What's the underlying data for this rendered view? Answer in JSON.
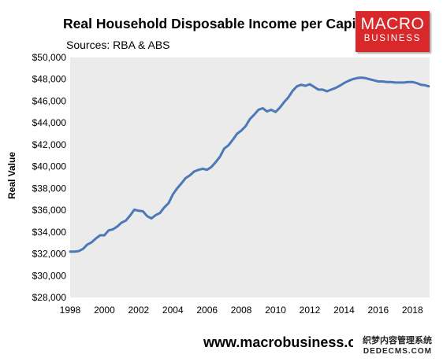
{
  "header": {
    "title": "Real Household Disposable Income per Capita",
    "subtitle": "Sources: RBA & ABS"
  },
  "logo": {
    "line1": "MACRO",
    "line2": "BUSINESS",
    "color": "#d8282a"
  },
  "footer": {
    "url_text": "www.macrobusiness.c"
  },
  "watermark": {
    "line1": "织梦内容管理系统",
    "line2": "DEDECMS.COM"
  },
  "colors": {
    "plot_bg": "#ebebeb",
    "line": "#4a78b8"
  },
  "chart_data": {
    "type": "line",
    "title": "Real Household Disposable Income per Capita",
    "subtitle": "Sources: RBA & ABS",
    "xlabel": "",
    "ylabel": "Real Value",
    "xlim": [
      1998,
      2019
    ],
    "ylim": [
      28000,
      50000
    ],
    "x_ticks": [
      1998,
      2000,
      2002,
      2004,
      2006,
      2008,
      2010,
      2012,
      2014,
      2016,
      2018
    ],
    "y_ticks": [
      28000,
      30000,
      32000,
      34000,
      36000,
      38000,
      40000,
      42000,
      44000,
      46000,
      48000,
      50000
    ],
    "y_tick_labels": [
      "$28,000",
      "$30,000",
      "$32,000",
      "$34,000",
      "$36,000",
      "$38,000",
      "$40,000",
      "$42,000",
      "$44,000",
      "$46,000",
      "$48,000",
      "$50,000"
    ],
    "grid": false,
    "legend": "none",
    "series": [
      {
        "x": [
          1998.0,
          1998.25,
          1998.5,
          1998.75,
          1999.0,
          1999.25,
          1999.5,
          1999.75,
          2000.0,
          2000.25,
          2000.5,
          2000.75,
          2001.0,
          2001.25,
          2001.5,
          2001.75,
          2002.0,
          2002.25,
          2002.5,
          2002.75,
          2003.0,
          2003.25,
          2003.5,
          2003.75,
          2004.0,
          2004.25,
          2004.5,
          2004.75,
          2005.0,
          2005.25,
          2005.5,
          2005.75,
          2006.0,
          2006.25,
          2006.5,
          2006.75,
          2007.0,
          2007.25,
          2007.5,
          2007.75,
          2008.0,
          2008.25,
          2008.5,
          2008.75,
          2009.0,
          2009.25,
          2009.5,
          2009.75,
          2010.0,
          2010.25,
          2010.5,
          2010.75,
          2011.0,
          2011.25,
          2011.5,
          2011.75,
          2012.0,
          2012.25,
          2012.5,
          2012.75,
          2013.0,
          2013.25,
          2013.5,
          2013.75,
          2014.0,
          2014.25,
          2014.5,
          2014.75,
          2015.0,
          2015.25,
          2015.5,
          2015.75,
          2016.0,
          2016.25,
          2016.5,
          2016.75,
          2017.0,
          2017.25,
          2017.5,
          2017.75,
          2018.0,
          2018.25,
          2018.5,
          2018.75,
          2018.95
        ],
        "values": [
          32200,
          32200,
          32250,
          32450,
          32850,
          33050,
          33400,
          33700,
          33700,
          34150,
          34250,
          34500,
          34850,
          35050,
          35500,
          36050,
          35950,
          35900,
          35450,
          35250,
          35550,
          35750,
          36250,
          36650,
          37450,
          38000,
          38450,
          38950,
          39200,
          39550,
          39700,
          39800,
          39700,
          39950,
          40400,
          40900,
          41650,
          41950,
          42450,
          43000,
          43300,
          43700,
          44350,
          44750,
          45200,
          45350,
          45050,
          45200,
          45000,
          45400,
          45900,
          46350,
          46950,
          47350,
          47500,
          47400,
          47550,
          47300,
          47050,
          47050,
          46900,
          47050,
          47200,
          47400,
          47650,
          47850,
          48000,
          48100,
          48150,
          48100,
          48000,
          47900,
          47800,
          47800,
          47750,
          47750,
          47700,
          47700,
          47700,
          47750,
          47750,
          47650,
          47500,
          47450,
          47350
        ]
      }
    ]
  }
}
